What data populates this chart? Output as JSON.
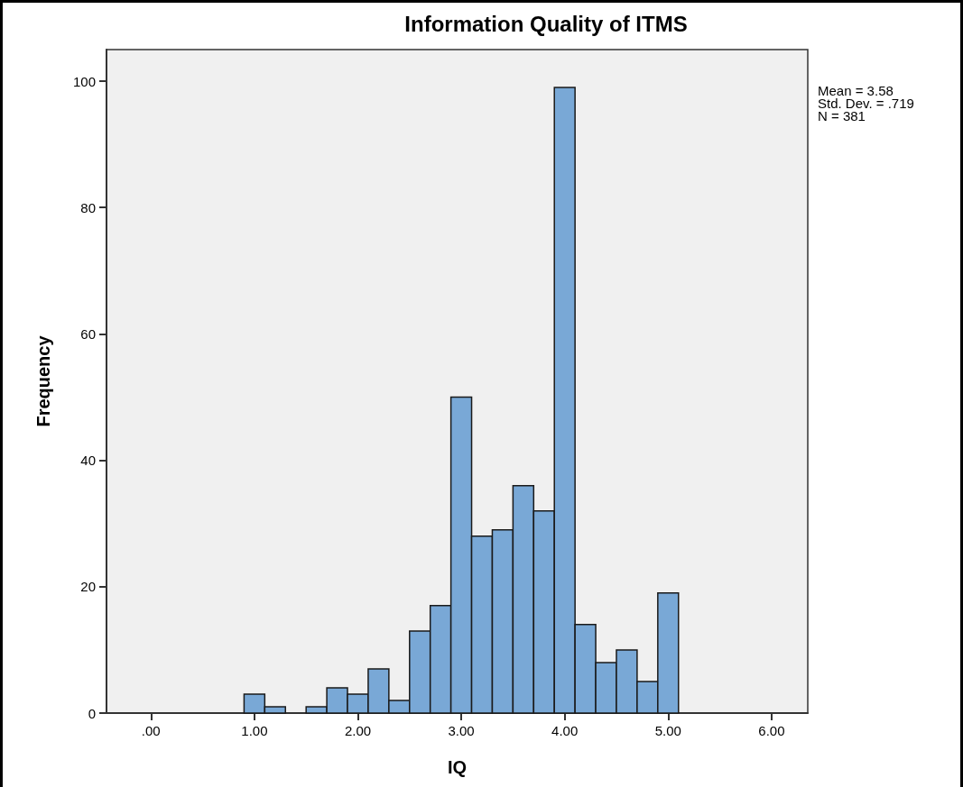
{
  "chart_data": {
    "type": "histogram",
    "title": "Information Quality of ITMS",
    "xlabel": "IQ",
    "ylabel": "Frequency",
    "bins": [
      0.9,
      1.1,
      1.3,
      1.5,
      1.7,
      1.9,
      2.1,
      2.3,
      2.5,
      2.7,
      2.9,
      3.1,
      3.3,
      3.5,
      3.7,
      3.9,
      4.1,
      4.3,
      4.5,
      4.7,
      4.9,
      5.1
    ],
    "values": [
      3,
      1,
      0,
      1,
      4,
      3,
      7,
      2,
      13,
      17,
      50,
      28,
      29,
      36,
      32,
      99,
      14,
      8,
      10,
      5,
      19
    ],
    "color": "#79a8d6",
    "xlim": [
      -0.43,
      6.35
    ],
    "xticks": [
      {
        "value": 0,
        "label": ".00"
      },
      {
        "value": 1,
        "label": "1.00"
      },
      {
        "value": 2,
        "label": "2.00"
      },
      {
        "value": 3,
        "label": "3.00"
      },
      {
        "value": 4,
        "label": "4.00"
      },
      {
        "value": 5,
        "label": "5.00"
      },
      {
        "value": 6,
        "label": "6.00"
      }
    ],
    "ylim": [
      0,
      105
    ],
    "yticks": [
      0,
      20,
      40,
      60,
      80,
      100
    ],
    "annotations": [
      "Mean = 3.58",
      "Std. Dev. = .719",
      "N = 381"
    ]
  }
}
